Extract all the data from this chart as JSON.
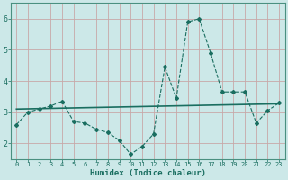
{
  "xlabel": "Humidex (Indice chaleur)",
  "ylabel": "",
  "background_color": "#cce8e8",
  "grid_color_major": "#c8a8a8",
  "grid_color_minor": "#c8a8a8",
  "line_color": "#1a6e60",
  "x_values": [
    0,
    1,
    2,
    3,
    4,
    5,
    6,
    7,
    8,
    9,
    10,
    11,
    12,
    13,
    14,
    15,
    16,
    17,
    18,
    19,
    20,
    21,
    22,
    23
  ],
  "y_values": [
    2.6,
    3.0,
    3.1,
    3.2,
    3.35,
    2.7,
    2.65,
    2.45,
    2.35,
    2.1,
    1.65,
    1.9,
    2.3,
    4.45,
    3.45,
    5.9,
    6.0,
    4.9,
    3.65,
    3.65,
    3.65,
    2.65,
    3.05,
    3.3
  ],
  "trend_x": [
    0,
    23
  ],
  "trend_y": [
    3.1,
    3.27
  ],
  "ylim": [
    1.5,
    6.5
  ],
  "xlim": [
    -0.5,
    23.5
  ],
  "yticks": [
    2,
    3,
    4,
    5,
    6
  ],
  "xticks": [
    0,
    1,
    2,
    3,
    4,
    5,
    6,
    7,
    8,
    9,
    10,
    11,
    12,
    13,
    14,
    15,
    16,
    17,
    18,
    19,
    20,
    21,
    22,
    23
  ],
  "xtick_labels": [
    "0",
    "1",
    "2",
    "3",
    "4",
    "5",
    "6",
    "7",
    "8",
    "9",
    "10",
    "11",
    "12",
    "13",
    "14",
    "15",
    "16",
    "17",
    "18",
    "19",
    "20",
    "21",
    "22",
    "23"
  ]
}
